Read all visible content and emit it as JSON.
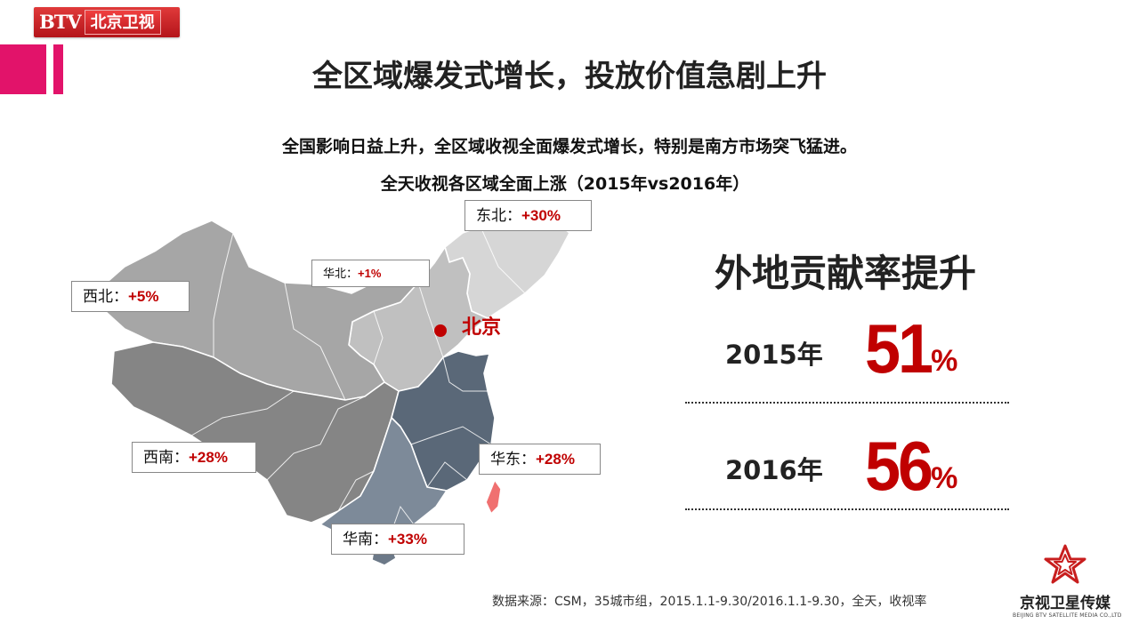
{
  "logo": {
    "btv": "BTV",
    "channel": "北京卫视"
  },
  "main_title": "全区域爆发式增长，投放价值急剧上升",
  "subtitle": "全国影响日益上升，全区域收视全面爆发式增长，特别是南方市场突飞猛进。",
  "map": {
    "title": "全天收视各区域全面上涨（2015年vs2016年）",
    "capital_label": "北京",
    "regions": [
      {
        "name": "东北：",
        "value": "+30%"
      },
      {
        "name": "华北：",
        "value": "+1%"
      },
      {
        "name": "西北：",
        "value": "+5%"
      },
      {
        "name": "西南：",
        "value": "+28%"
      },
      {
        "name": "华东：",
        "value": "+28%"
      },
      {
        "name": "华南：",
        "value": "+33%"
      }
    ]
  },
  "stats": {
    "title": "外地贡献率提升",
    "rows": [
      {
        "year": "2015年",
        "value": "51",
        "unit": "%"
      },
      {
        "year": "2016年",
        "value": "56",
        "unit": "%"
      }
    ]
  },
  "source": "数据来源：CSM，35城市组，2015.1.1-9.30/2016.1.1-9.30，全天，收视率",
  "brand": {
    "cn": "京视卫星传媒",
    "en": "BEIJING BTV SATELLITE MEDIA CO.,LTD"
  },
  "colors": {
    "accent": "#c00000",
    "pink_bar": "#e2136a",
    "east_fill": "#5a6878",
    "southwest_fill": "#858585",
    "north_fill": "#bdbdbd",
    "northeast_fill": "#d9d9d9",
    "taiwan_fill": "#f07070"
  }
}
